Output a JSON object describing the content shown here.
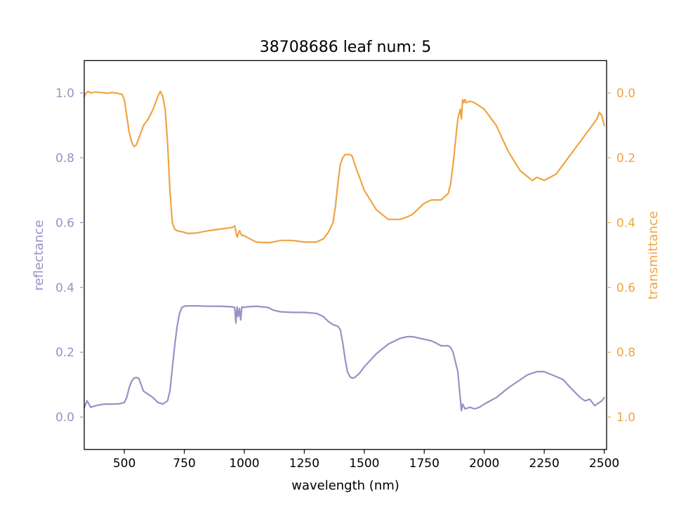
{
  "chart_data": {
    "type": "line",
    "title": "38708686 leaf num: 5",
    "xlabel": "wavelength (nm)",
    "ylabel_left": "reflectance",
    "ylabel_right": "transmittance",
    "xlim": [
      333,
      2510
    ],
    "ylim_left": [
      -0.1,
      1.1
    ],
    "ylim_right": [
      1.1,
      -0.1
    ],
    "right_axis_inverted": true,
    "grid": false,
    "legend": "none",
    "x_ticks": [
      500,
      750,
      1000,
      1250,
      1500,
      1750,
      2000,
      2250,
      2500
    ],
    "x_tick_labels": [
      "500",
      "750",
      "1000",
      "1250",
      "1500",
      "1750",
      "2000",
      "2250",
      "2500"
    ],
    "left_ticks": [
      0.0,
      0.2,
      0.4,
      0.6,
      0.8,
      1.0
    ],
    "left_tick_labels": [
      "0.0",
      "0.2",
      "0.4",
      "0.6",
      "0.8",
      "1.0"
    ],
    "right_ticks": [
      0.0,
      0.2,
      0.4,
      0.6,
      0.8,
      1.0
    ],
    "right_tick_labels": [
      "0.0",
      "0.2",
      "0.4",
      "0.6",
      "0.8",
      "1.0"
    ],
    "colors": {
      "reflectance": "#9991c6",
      "transmittance": "#f0a442",
      "axes": "#000000"
    },
    "series": [
      {
        "axis": "left",
        "color": "#9991c6",
        "x": [
          333,
          345,
          360,
          380,
          400,
          420,
          450,
          480,
          500,
          510,
          520,
          530,
          540,
          550,
          560,
          570,
          580,
          600,
          620,
          640,
          660,
          680,
          690,
          700,
          710,
          720,
          730,
          740,
          750,
          760,
          800,
          850,
          900,
          950,
          960,
          965,
          970,
          975,
          980,
          985,
          990,
          1000,
          1010,
          1050,
          1100,
          1120,
          1150,
          1200,
          1250,
          1300,
          1330,
          1350,
          1370,
          1390,
          1400,
          1410,
          1420,
          1430,
          1440,
          1450,
          1460,
          1480,
          1500,
          1550,
          1600,
          1650,
          1680,
          1700,
          1750,
          1780,
          1800,
          1820,
          1850,
          1860,
          1870,
          1880,
          1890,
          1895,
          1900,
          1905,
          1910,
          1920,
          1940,
          1960,
          1980,
          2000,
          2050,
          2100,
          2150,
          2180,
          2200,
          2220,
          2250,
          2300,
          2330,
          2360,
          2380,
          2400,
          2420,
          2440,
          2460,
          2480,
          2490,
          2500
        ],
        "values": [
          0.03,
          0.05,
          0.03,
          0.035,
          0.038,
          0.04,
          0.04,
          0.041,
          0.045,
          0.06,
          0.09,
          0.11,
          0.12,
          0.122,
          0.12,
          0.1,
          0.08,
          0.07,
          0.06,
          0.045,
          0.04,
          0.05,
          0.08,
          0.15,
          0.22,
          0.28,
          0.32,
          0.338,
          0.342,
          0.343,
          0.343,
          0.342,
          0.342,
          0.34,
          0.338,
          0.29,
          0.34,
          0.31,
          0.335,
          0.3,
          0.34,
          0.338,
          0.34,
          0.342,
          0.338,
          0.33,
          0.325,
          0.323,
          0.323,
          0.32,
          0.31,
          0.295,
          0.285,
          0.28,
          0.27,
          0.23,
          0.18,
          0.14,
          0.125,
          0.12,
          0.122,
          0.135,
          0.155,
          0.195,
          0.225,
          0.243,
          0.248,
          0.248,
          0.24,
          0.235,
          0.228,
          0.22,
          0.22,
          0.215,
          0.2,
          0.17,
          0.14,
          0.1,
          0.06,
          0.02,
          0.04,
          0.025,
          0.03,
          0.025,
          0.03,
          0.04,
          0.06,
          0.09,
          0.115,
          0.13,
          0.135,
          0.14,
          0.14,
          0.125,
          0.115,
          0.09,
          0.075,
          0.06,
          0.05,
          0.055,
          0.035,
          0.045,
          0.05,
          0.06
        ]
      },
      {
        "axis": "right",
        "color": "#f0a442",
        "x": [
          333,
          340,
          350,
          360,
          380,
          400,
          420,
          440,
          450,
          460,
          470,
          480,
          490,
          500,
          510,
          520,
          530,
          540,
          550,
          560,
          570,
          580,
          600,
          620,
          630,
          640,
          650,
          660,
          670,
          680,
          690,
          700,
          710,
          720,
          730,
          740,
          750,
          760,
          780,
          800,
          850,
          900,
          950,
          960,
          970,
          980,
          990,
          1000,
          1010,
          1050,
          1100,
          1120,
          1150,
          1200,
          1250,
          1300,
          1330,
          1350,
          1370,
          1380,
          1390,
          1400,
          1410,
          1420,
          1440,
          1450,
          1460,
          1480,
          1500,
          1550,
          1600,
          1650,
          1680,
          1700,
          1750,
          1780,
          1800,
          1820,
          1850,
          1860,
          1870,
          1880,
          1890,
          1900,
          1905,
          1910,
          1915,
          1920,
          1925,
          1940,
          1960,
          2000,
          2050,
          2100,
          2150,
          2200,
          2220,
          2250,
          2300,
          2350,
          2400,
          2430,
          2460,
          2470,
          2480,
          2490,
          2500
        ],
        "values": [
          0.01,
          0.0,
          -0.005,
          0.0,
          -0.003,
          -0.002,
          0.0,
          0.0,
          -0.002,
          0.0,
          0.0,
          0.003,
          0.004,
          0.02,
          0.07,
          0.12,
          0.15,
          0.165,
          0.16,
          0.14,
          0.12,
          0.1,
          0.08,
          0.05,
          0.03,
          0.01,
          -0.005,
          0.01,
          0.05,
          0.15,
          0.3,
          0.4,
          0.42,
          0.425,
          0.427,
          0.428,
          0.43,
          0.433,
          0.433,
          0.432,
          0.425,
          0.42,
          0.415,
          0.41,
          0.445,
          0.425,
          0.44,
          0.44,
          0.445,
          0.46,
          0.462,
          0.46,
          0.455,
          0.455,
          0.46,
          0.46,
          0.45,
          0.43,
          0.4,
          0.35,
          0.28,
          0.22,
          0.2,
          0.19,
          0.19,
          0.195,
          0.22,
          0.26,
          0.3,
          0.36,
          0.39,
          0.39,
          0.382,
          0.375,
          0.34,
          0.33,
          0.33,
          0.33,
          0.31,
          0.28,
          0.22,
          0.15,
          0.08,
          0.05,
          0.08,
          0.02,
          0.03,
          0.02,
          0.03,
          0.025,
          0.03,
          0.05,
          0.1,
          0.18,
          0.24,
          0.27,
          0.26,
          0.27,
          0.25,
          0.2,
          0.15,
          0.12,
          0.09,
          0.08,
          0.06,
          0.07,
          0.1
        ]
      }
    ]
  }
}
